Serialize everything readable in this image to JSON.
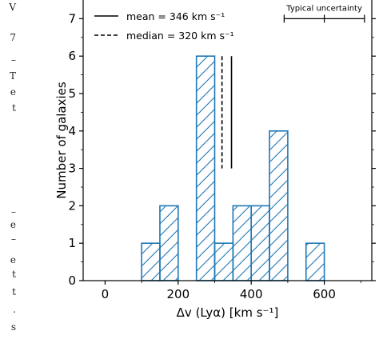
{
  "margin_fragments": [
    "V",
    "7",
    "–",
    "T",
    "e",
    "t",
    "–",
    "e",
    "–",
    "e",
    "t",
    "t",
    ".",
    "s"
  ],
  "chart_data": {
    "type": "histogram",
    "xlabel": "Δv (Lyα) [km s⁻¹]",
    "ylabel": "Number of galaxies",
    "xlim": [
      -60,
      730
    ],
    "ylim": [
      0,
      7.5
    ],
    "x_ticks": [
      0,
      200,
      400,
      600
    ],
    "y_ticks": [
      0,
      1,
      2,
      3,
      4,
      5,
      6,
      7
    ],
    "bins": [
      {
        "start": 100,
        "end": 150,
        "count": 1
      },
      {
        "start": 150,
        "end": 200,
        "count": 2
      },
      {
        "start": 250,
        "end": 300,
        "count": 6
      },
      {
        "start": 300,
        "end": 350,
        "count": 1
      },
      {
        "start": 350,
        "end": 400,
        "count": 2
      },
      {
        "start": 400,
        "end": 450,
        "count": 2
      },
      {
        "start": 450,
        "end": 500,
        "count": 4
      },
      {
        "start": 550,
        "end": 600,
        "count": 1
      }
    ],
    "hist_color": "#1f77b4",
    "mean": {
      "value": 346,
      "label": "mean = 346 km s⁻¹",
      "style": "solid",
      "ymax": 3
    },
    "median": {
      "value": 320,
      "label": "median = 320 km s⁻¹",
      "style": "dashed",
      "ymax": 3
    },
    "legend_position": "top-left",
    "uncertainty": {
      "label": "Typical uncertainty",
      "xmin": 490,
      "xmax": 710,
      "xmid": 600,
      "y": 7.0
    }
  }
}
